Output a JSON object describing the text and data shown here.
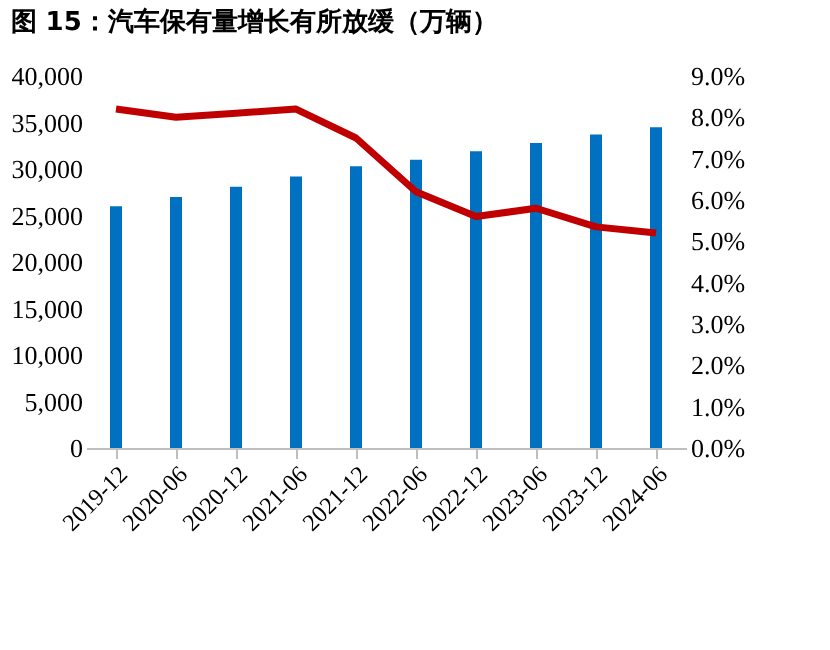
{
  "chart_data": {
    "type": "bar",
    "title": "图 15：汽车保有量增长有所放缓（万辆）",
    "categories": [
      "2019-12",
      "2020-06",
      "2020-12",
      "2021-06",
      "2021-12",
      "2022-06",
      "2022-12",
      "2023-06",
      "2023-12",
      "2024-06"
    ],
    "series": [
      {
        "color": "#0070c0",
        "values": [
          26000,
          27000,
          28100,
          29200,
          30300,
          31000,
          31900,
          32800,
          33700,
          34500
        ]
      },
      {
        "type": "line",
        "axis": "y2",
        "color": "#c00000",
        "values": [
          8.2,
          8.0,
          8.1,
          8.2,
          7.5,
          6.2,
          5.6,
          5.8,
          5.35,
          5.2
        ]
      }
    ],
    "ylim": [
      0,
      40000
    ],
    "yticks": [
      {
        "value": 0,
        "label": "0"
      },
      {
        "value": 5000,
        "label": "5,000"
      },
      {
        "value": 10000,
        "label": "10,000"
      },
      {
        "value": 15000,
        "label": "15,000"
      },
      {
        "value": 20000,
        "label": "20,000"
      },
      {
        "value": 25000,
        "label": "25,000"
      },
      {
        "value": 30000,
        "label": "30,000"
      },
      {
        "value": 35000,
        "label": "35,000"
      },
      {
        "value": 40000,
        "label": "40,000"
      }
    ],
    "y2lim": [
      0,
      9
    ],
    "y2ticks": [
      {
        "value": 0,
        "label": "0.0%"
      },
      {
        "value": 1,
        "label": "1.0%"
      },
      {
        "value": 2,
        "label": "2.0%"
      },
      {
        "value": 3,
        "label": "3.0%"
      },
      {
        "value": 4,
        "label": "4.0%"
      },
      {
        "value": 5,
        "label": "5.0%"
      },
      {
        "value": 6,
        "label": "6.0%"
      },
      {
        "value": 7,
        "label": "7.0%"
      },
      {
        "value": 8,
        "label": "8.0%"
      },
      {
        "value": 9,
        "label": "9.0%"
      }
    ],
    "grid": false
  }
}
